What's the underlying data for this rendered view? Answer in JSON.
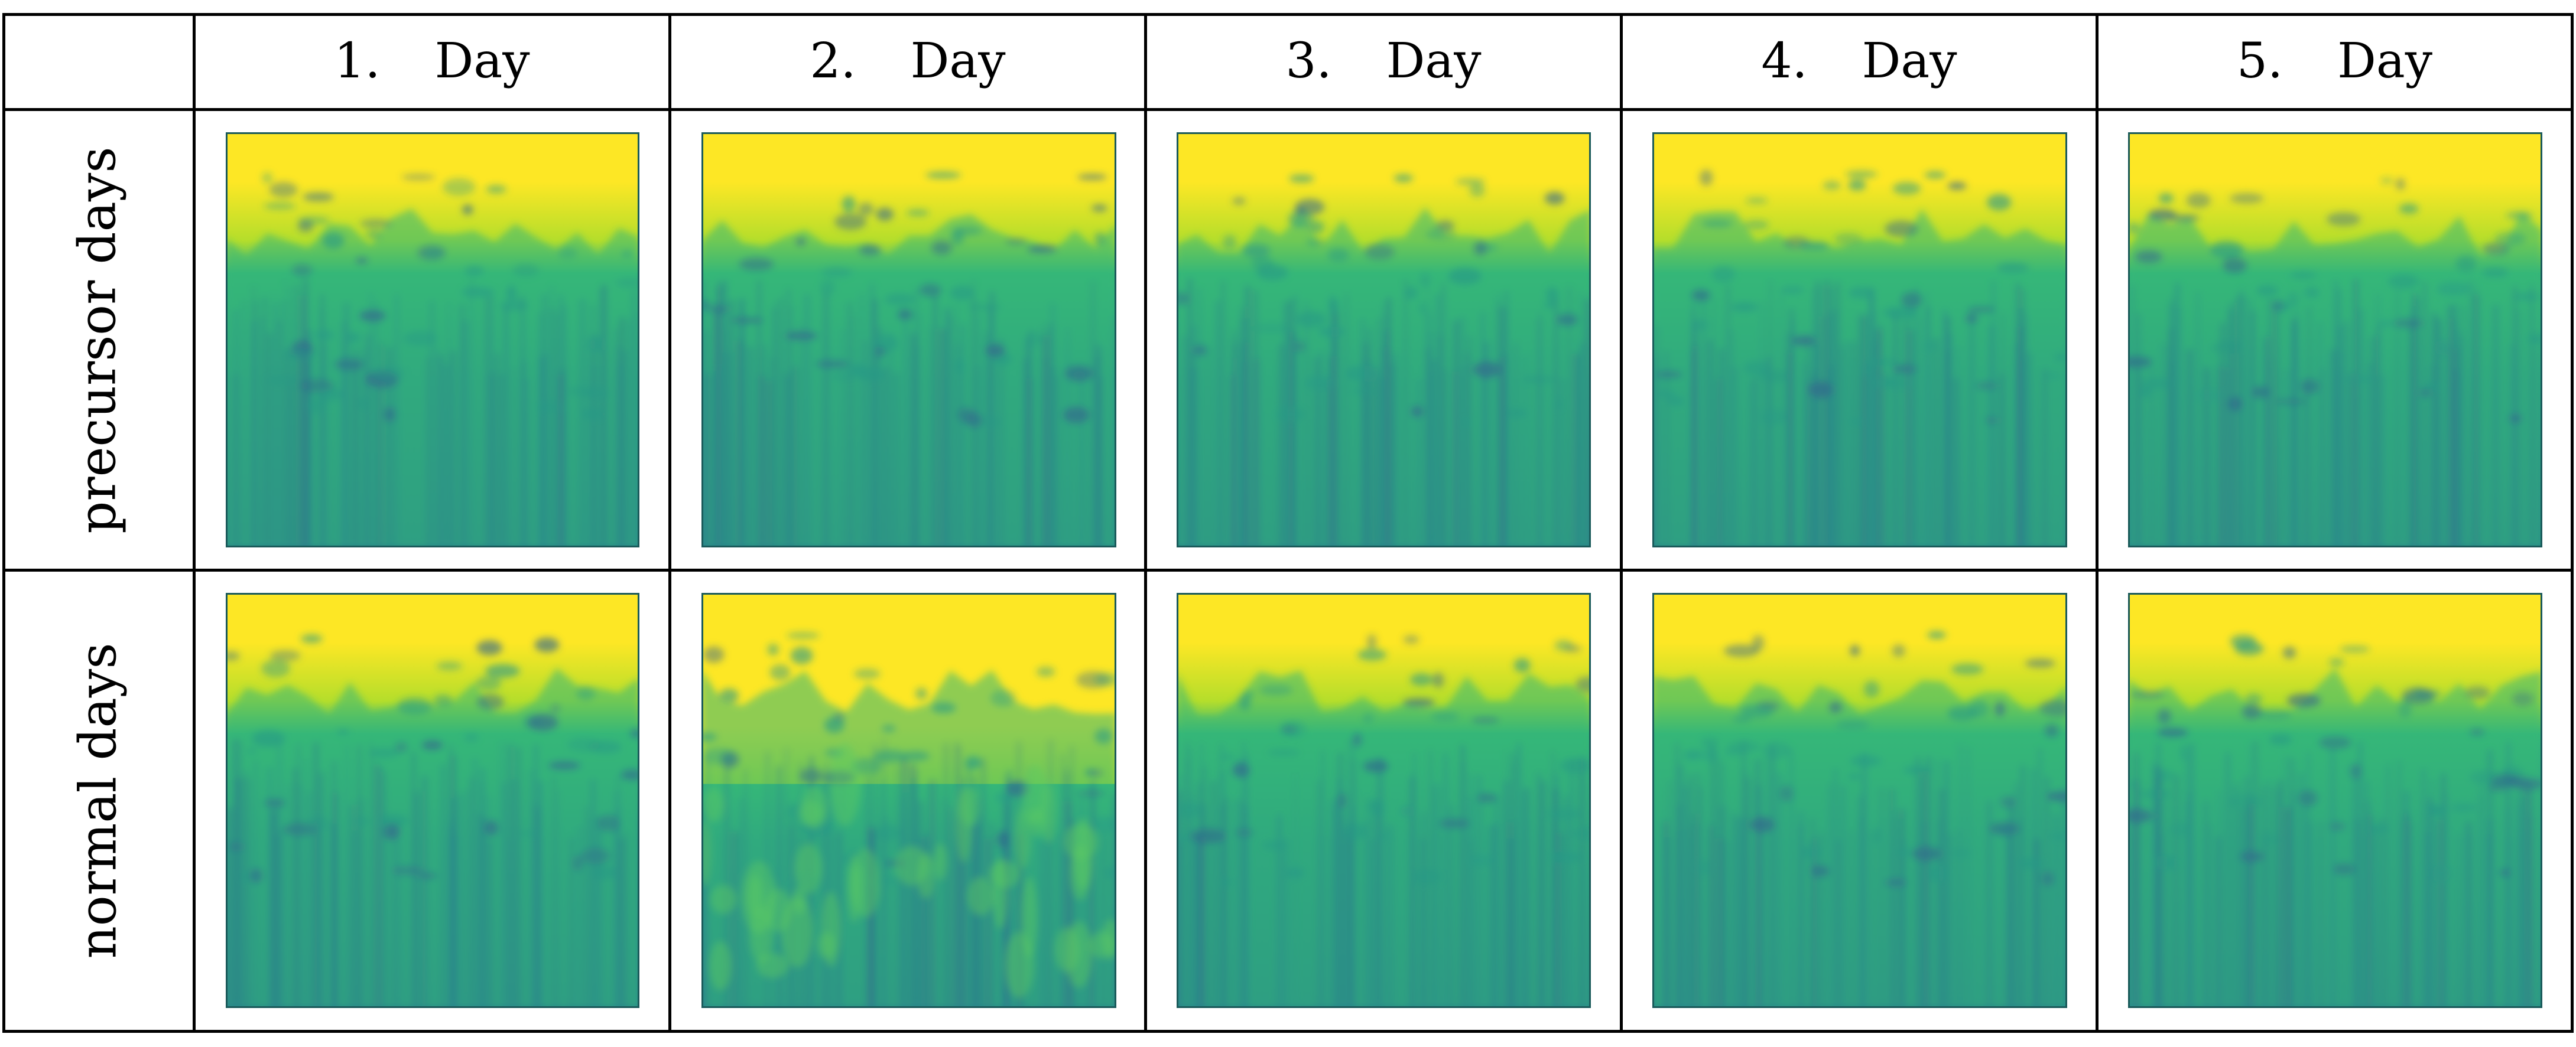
{
  "table": {
    "corner": "",
    "columns": [
      {
        "num": "1.",
        "label": "Day"
      },
      {
        "num": "2.",
        "label": "Day"
      },
      {
        "num": "3.",
        "label": "Day"
      },
      {
        "num": "4.",
        "label": "Day"
      },
      {
        "num": "5.",
        "label": "Day"
      }
    ],
    "rows": [
      {
        "label": "precursor days"
      },
      {
        "label": "normal days"
      }
    ]
  },
  "colormap": {
    "top": "#fde725",
    "upper": "#b5de2b",
    "mid": "#35b779",
    "lower": "#2a9a86",
    "deep": "#1f9e89",
    "dark": "#26828e",
    "spots": "#31688e"
  }
}
